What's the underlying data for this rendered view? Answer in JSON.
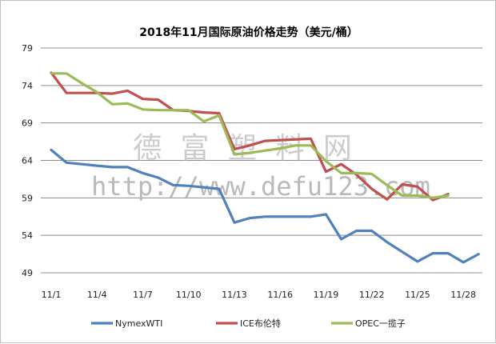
{
  "chart_data": {
    "type": "line",
    "title": "2018年11月国际原油价格走势（美元/桶）",
    "xlabel": "",
    "ylabel": "",
    "ylim": [
      49,
      79
    ],
    "yticks": [
      49,
      54,
      59,
      64,
      69,
      74,
      79
    ],
    "grid": "horizontal",
    "legend_position": "bottom",
    "categories": [
      "11/1",
      "11/2",
      "11/3",
      "11/4",
      "11/5",
      "11/6",
      "11/7",
      "11/8",
      "11/9",
      "11/10",
      "11/11",
      "11/12",
      "11/13",
      "11/14",
      "11/15",
      "11/16",
      "11/17",
      "11/18",
      "11/19",
      "11/20",
      "11/21",
      "11/22",
      "11/23",
      "11/24",
      "11/25",
      "11/26",
      "11/27",
      "11/28",
      "11/29",
      "11/30"
    ],
    "xtick_labels": [
      "11/1",
      "11/4",
      "11/7",
      "11/10",
      "11/13",
      "11/16",
      "11/19",
      "11/22",
      "11/25",
      "11/28"
    ],
    "series": [
      {
        "name": "NymexWTI",
        "color": "#4f81bd",
        "values": [
          65.4,
          63.7,
          63.5,
          63.3,
          63.1,
          63.1,
          62.3,
          61.7,
          60.7,
          60.6,
          60.4,
          60.2,
          55.7,
          56.3,
          56.5,
          56.5,
          56.5,
          56.5,
          56.8,
          53.5,
          54.6,
          54.6,
          53.1,
          51.8,
          50.5,
          51.6,
          51.6,
          50.4,
          51.5,
          null
        ]
      },
      {
        "name": "ICE布伦特",
        "color": "#c0504d",
        "values": [
          75.7,
          73.0,
          73.0,
          73.0,
          72.9,
          73.3,
          72.2,
          72.1,
          70.7,
          70.6,
          70.4,
          70.3,
          65.5,
          66.0,
          66.6,
          66.7,
          66.8,
          66.9,
          62.5,
          63.5,
          62.1,
          60.2,
          58.8,
          60.8,
          60.5,
          58.7,
          59.5,
          null,
          null,
          null
        ]
      },
      {
        "name": "OPEC一揽子",
        "color": "#9bbb59",
        "values": [
          75.6,
          75.6,
          74.3,
          73.1,
          71.5,
          71.6,
          70.8,
          70.7,
          70.7,
          70.7,
          69.2,
          70.0,
          64.8,
          65.0,
          65.3,
          65.6,
          66.0,
          66.0,
          63.9,
          62.3,
          62.3,
          62.2,
          60.7,
          59.3,
          59.3,
          59.0,
          59.3,
          null,
          null,
          null
        ]
      }
    ]
  },
  "watermark": {
    "line1": "德 富 塑 料 网",
    "line2": "http://www.defu123.com"
  }
}
